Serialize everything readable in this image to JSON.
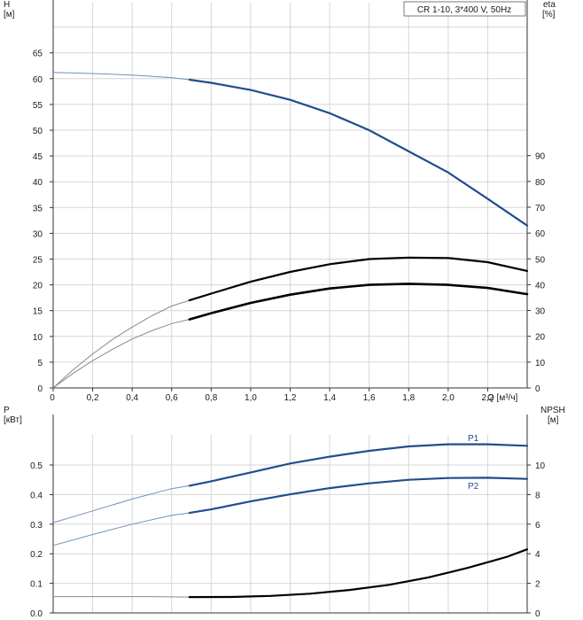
{
  "chart_data": [
    {
      "type": "line",
      "legend": "CR 1-10, 3*400 V, 50Hz",
      "y_left_label": "H",
      "y_left_unit": "[м]",
      "y_right_label": "eta",
      "y_right_unit": "[%]",
      "x_label": "Q [м³/ч]",
      "xlim": [
        0,
        2.4
      ],
      "ylim_left": [
        0,
        70
      ],
      "ylim_right": [
        0,
        100
      ],
      "x_tick_labels": [
        "0",
        "0,2",
        "0,4",
        "0,6",
        "0,8",
        "1,0",
        "1,2",
        "1,4",
        "1,6",
        "1,8",
        "2,0",
        "2,2"
      ],
      "y_left_tick_labels": [
        "0",
        "5",
        "10",
        "15",
        "20",
        "25",
        "30",
        "35",
        "40",
        "45",
        "50",
        "55",
        "60",
        "65"
      ],
      "y_right_tick_labels": [
        "0",
        "10",
        "20",
        "30",
        "40",
        "50",
        "60",
        "70",
        "80",
        "90"
      ],
      "grid": true,
      "series": [
        {
          "axis": "left",
          "color": "#1f4e8c",
          "x": [
            0,
            0.2,
            0.4,
            0.6,
            0.69,
            0.8,
            1.0,
            1.2,
            1.4,
            1.6,
            1.8,
            2.0,
            2.2,
            2.4
          ],
          "y": [
            61.2,
            61.0,
            60.7,
            60.2,
            59.8,
            59.2,
            57.8,
            55.9,
            53.3,
            50.0,
            45.9,
            41.8,
            36.7,
            31.5
          ],
          "operating_from": 0.69
        },
        {
          "axis": "left",
          "color": "#000000",
          "x": [
            0,
            0.1,
            0.2,
            0.3,
            0.4,
            0.5,
            0.6,
            0.69,
            0.8,
            1.0,
            1.2,
            1.4,
            1.6,
            1.8,
            2.0,
            2.2,
            2.4
          ],
          "y": [
            0,
            3.5,
            6.6,
            9.4,
            11.8,
            14.0,
            15.9,
            17.0,
            18.3,
            20.6,
            22.5,
            24.0,
            25.0,
            25.3,
            25.2,
            24.4,
            22.7
          ],
          "operating_from": 0.69
        },
        {
          "axis": "left",
          "color": "#000000",
          "x": [
            0,
            0.1,
            0.2,
            0.3,
            0.4,
            0.5,
            0.6,
            0.69,
            0.8,
            1.0,
            1.2,
            1.4,
            1.6,
            1.8,
            2.0,
            2.2,
            2.4
          ],
          "y": [
            0,
            2.8,
            5.3,
            7.5,
            9.5,
            11.1,
            12.5,
            13.3,
            14.5,
            16.5,
            18.1,
            19.3,
            20.0,
            20.2,
            20.0,
            19.4,
            18.2
          ],
          "operating_from": 0.69
        }
      ]
    },
    {
      "type": "line",
      "y_left_label": "P",
      "y_left_unit": "[кВт]",
      "y_right_label": "NPSH",
      "y_right_unit": "[м]",
      "xlim": [
        0,
        2.4
      ],
      "ylim_left": [
        0,
        0.6
      ],
      "ylim_right": [
        0,
        12
      ],
      "y_left_tick_labels": [
        "0.0",
        "0.1",
        "0.2",
        "0.3",
        "0.4",
        "0.5"
      ],
      "y_right_tick_labels": [
        "0",
        "2",
        "4",
        "6",
        "8",
        "10"
      ],
      "grid": true,
      "series": [
        {
          "name": "P1",
          "axis": "left",
          "color": "#1f4e8c",
          "x": [
            0,
            0.2,
            0.4,
            0.6,
            0.69,
            0.8,
            1.0,
            1.2,
            1.4,
            1.6,
            1.8,
            2.0,
            2.2,
            2.4
          ],
          "y": [
            0.305,
            0.345,
            0.385,
            0.42,
            0.43,
            0.445,
            0.475,
            0.505,
            0.528,
            0.548,
            0.563,
            0.57,
            0.57,
            0.565
          ],
          "operating_from": 0.69
        },
        {
          "name": "P2",
          "axis": "left",
          "color": "#1f4e8c",
          "x": [
            0,
            0.2,
            0.4,
            0.6,
            0.69,
            0.8,
            1.0,
            1.2,
            1.4,
            1.6,
            1.8,
            2.0,
            2.2,
            2.4
          ],
          "y": [
            0.228,
            0.265,
            0.3,
            0.33,
            0.338,
            0.35,
            0.377,
            0.401,
            0.422,
            0.438,
            0.45,
            0.456,
            0.457,
            0.453
          ],
          "operating_from": 0.69
        },
        {
          "axis": "right",
          "color": "#000000",
          "x": [
            0,
            0.5,
            0.69,
            0.9,
            1.1,
            1.3,
            1.5,
            1.7,
            1.9,
            2.1,
            2.3,
            2.4
          ],
          "y": [
            1.1,
            1.1,
            1.07,
            1.08,
            1.15,
            1.3,
            1.55,
            1.9,
            2.4,
            3.05,
            3.8,
            4.3
          ],
          "operating_from": 0.69
        }
      ]
    }
  ]
}
